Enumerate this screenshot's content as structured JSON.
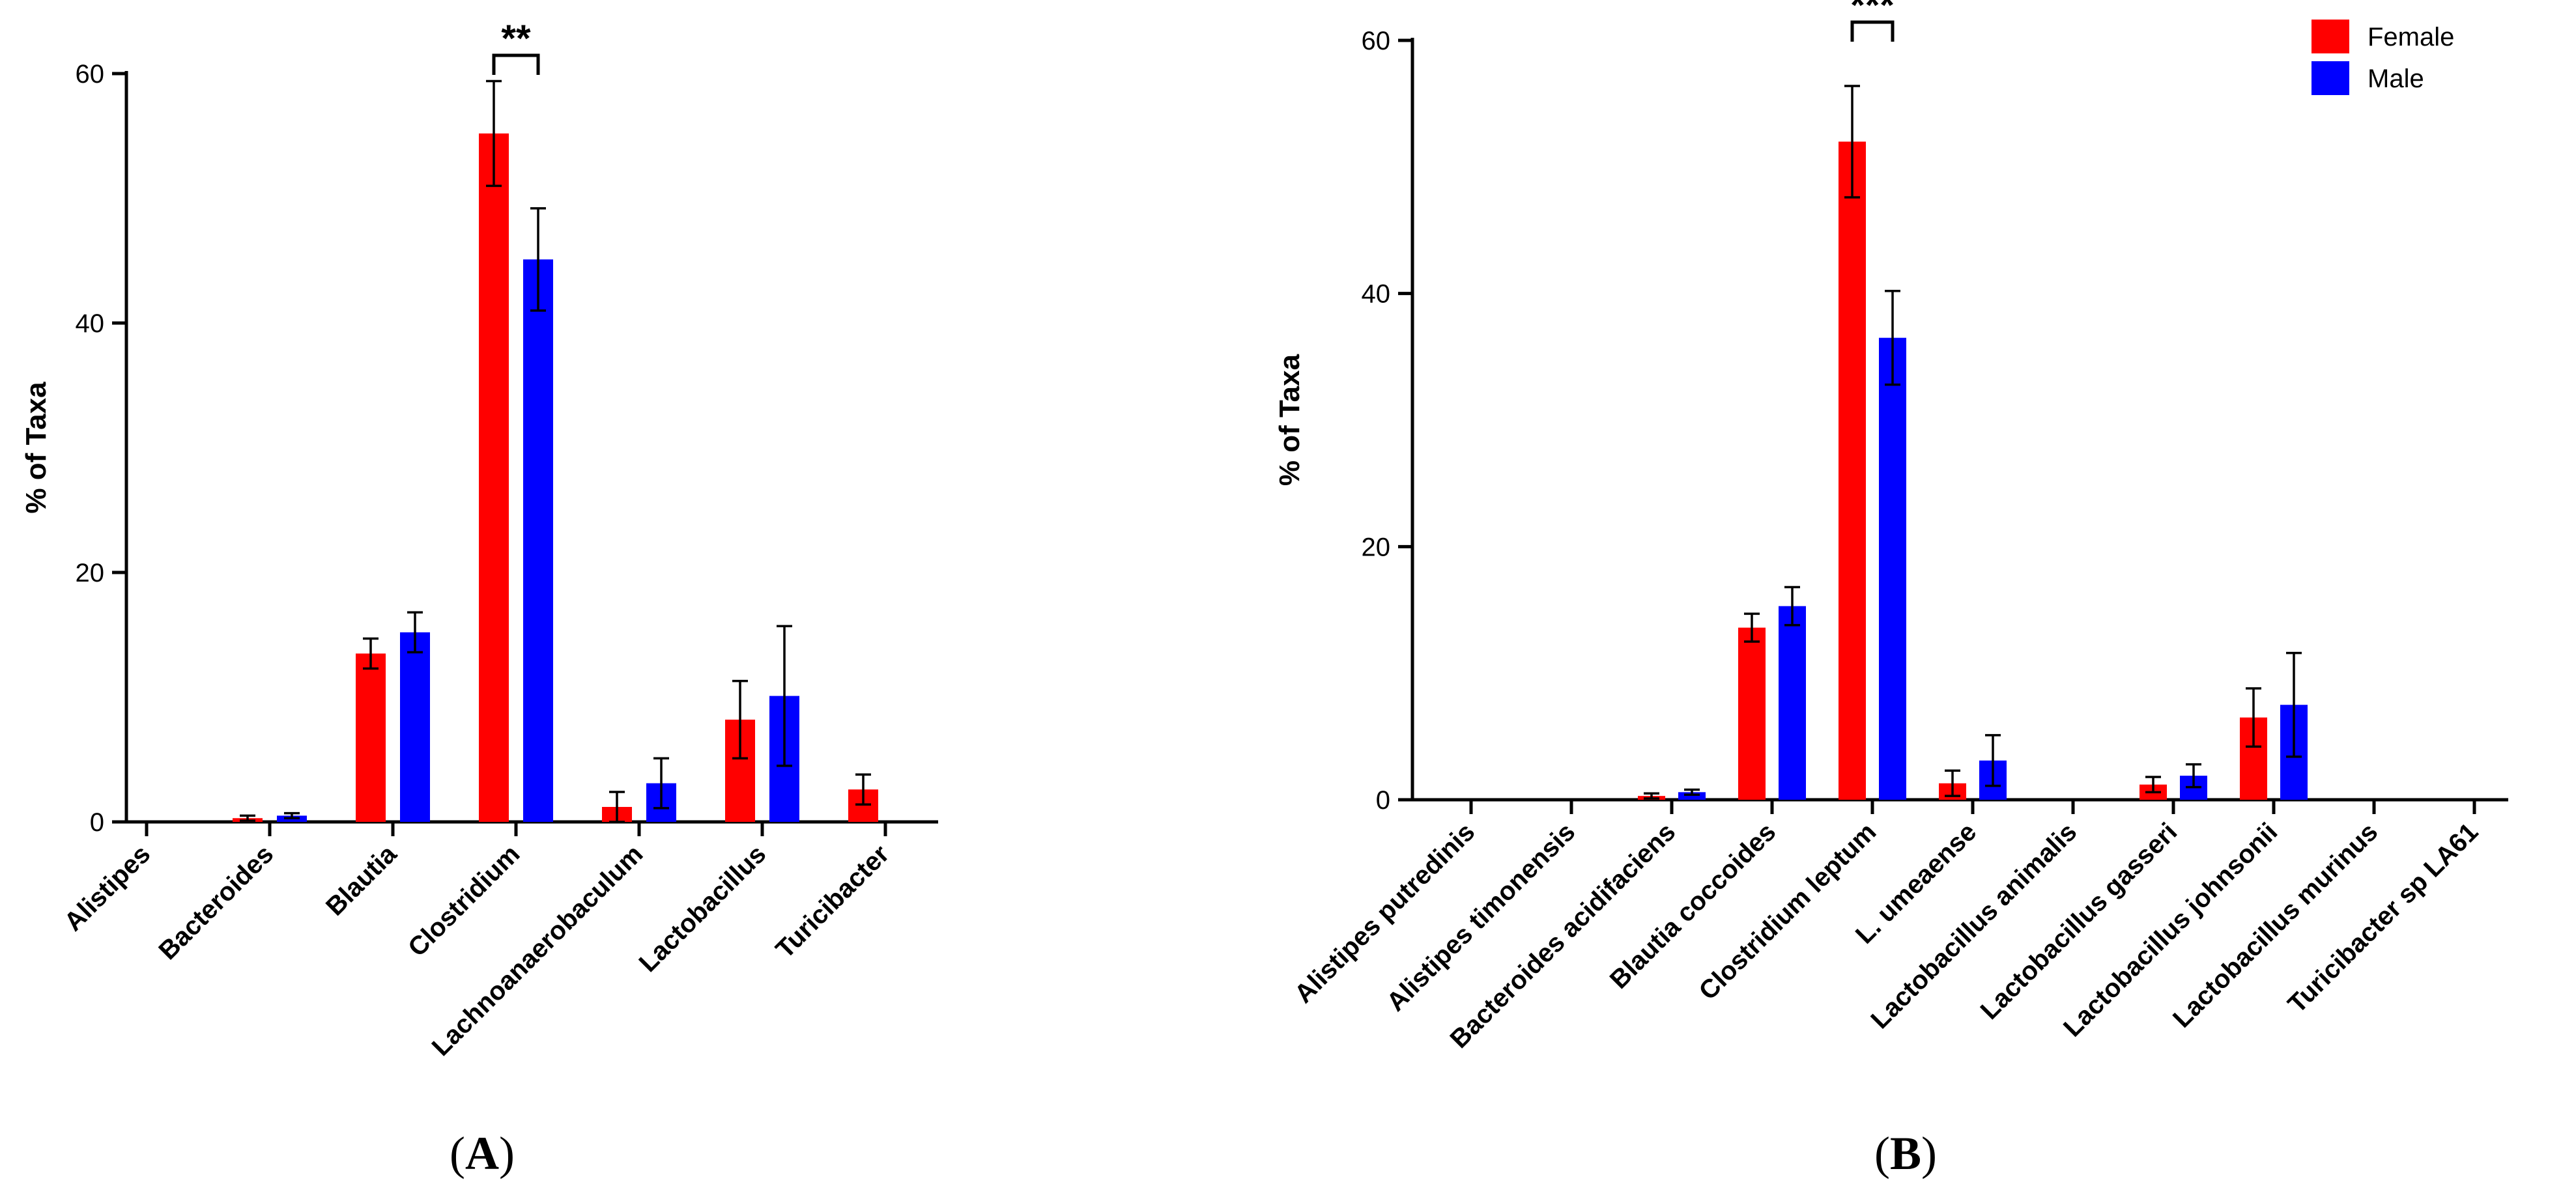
{
  "colors": {
    "female": "#ff0000",
    "male": "#0000ff",
    "axis": "#000000"
  },
  "legend": {
    "placement": "top-right of panel B",
    "female_label": "Female",
    "male_label": "Male"
  },
  "chart_data": [
    {
      "type": "bar",
      "panel": "A",
      "panel_label": "A",
      "ylabel": "% of Taxa",
      "xlabel": "",
      "ylim": [
        0,
        60
      ],
      "yticks": [
        0,
        20,
        40,
        60
      ],
      "categories": [
        "Alistipes",
        "Bacteroides",
        "Blautia",
        "Clostridium",
        "Lachnoanaerobaculum",
        "Lactobacillus",
        "Turicibacter"
      ],
      "series": [
        {
          "name": "Female",
          "color": "#ff0000",
          "values": [
            0,
            0.3,
            13.5,
            55.2,
            1.2,
            8.2,
            2.6
          ],
          "errors": [
            0,
            0.2,
            1.2,
            4.2,
            1.2,
            3.1,
            1.2
          ]
        },
        {
          "name": "Male",
          "color": "#0000ff",
          "values": [
            0,
            0.5,
            15.2,
            45.1,
            3.1,
            10.1,
            null
          ],
          "errors": [
            0,
            0.2,
            1.6,
            4.1,
            2.0,
            5.6,
            null
          ]
        }
      ],
      "annotations": [
        {
          "category": "Clostridium",
          "text": "**"
        }
      ]
    },
    {
      "type": "bar",
      "panel": "B",
      "panel_label": "B",
      "ylabel": "% of Taxa",
      "xlabel": "",
      "ylim": [
        0,
        60
      ],
      "yticks": [
        0,
        20,
        40,
        60
      ],
      "categories": [
        "Alistipes putredinis",
        "Alistipes timonensis",
        "Bacteroides acidifaciens",
        "Blautia coccoides",
        "Clostridium leptum",
        "L. umeaense",
        "Lactobacillus animalis",
        "Lactobacillus gasseri",
        "Lactobacillus johnsonii",
        "Lactobacillus murinus",
        "Turicibacter sp LA61"
      ],
      "series": [
        {
          "name": "Female",
          "color": "#ff0000",
          "values": [
            0,
            0,
            0.3,
            13.6,
            52.0,
            1.3,
            0,
            1.2,
            6.5,
            0,
            0
          ],
          "errors": [
            0,
            0,
            0.2,
            1.1,
            4.4,
            1.0,
            0,
            0.6,
            2.3,
            0,
            0
          ]
        },
        {
          "name": "Male",
          "color": "#0000ff",
          "values": [
            0,
            0,
            0.6,
            15.3,
            36.5,
            3.1,
            0,
            1.9,
            7.5,
            0,
            0
          ],
          "errors": [
            0,
            0,
            0.2,
            1.5,
            3.7,
            2.0,
            0,
            0.9,
            4.1,
            0,
            0
          ]
        }
      ],
      "annotations": [
        {
          "category": "Clostridium leptum",
          "text": "***"
        }
      ]
    }
  ]
}
